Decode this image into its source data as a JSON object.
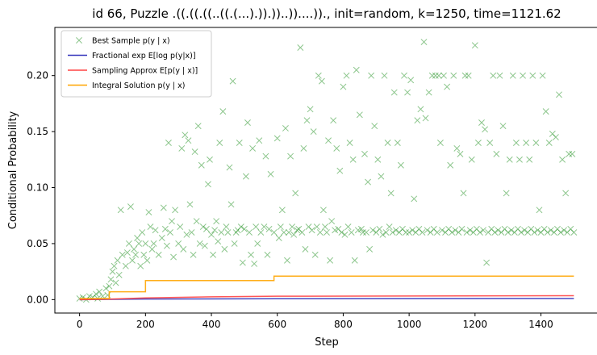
{
  "chart_data": {
    "type": "scatter",
    "title": "id 66, Puzzle .((.((.((..((.(...).)).))..))....))., init=random, k=1250, time=1121.62",
    "xlabel": "Step",
    "ylabel": "Conditional Probability",
    "xlim": [
      -75,
      1575
    ],
    "ylim": [
      -0.012,
      0.243
    ],
    "x_ticks": [
      0,
      200,
      400,
      600,
      800,
      1000,
      1200,
      1400
    ],
    "x_tick_labels": [
      "0",
      "200",
      "400",
      "600",
      "800",
      "1000",
      "1200",
      "1400"
    ],
    "y_ticks": [
      0.0,
      0.05,
      0.1,
      0.15,
      0.2
    ],
    "y_tick_labels": [
      "0.00",
      "0.05",
      "0.10",
      "0.15",
      "0.20"
    ],
    "grid": false,
    "legend_position": "top-left",
    "series": [
      {
        "name": "Best Sample p(y | x)",
        "legend_label": "Best Sample p(y | x)",
        "kind": "scatter",
        "marker": "x",
        "color": "#008000",
        "opacity": 0.45,
        "points": [
          [
            0,
            0.001
          ],
          [
            10,
            0.002
          ],
          [
            20,
            0.0
          ],
          [
            30,
            0.003
          ],
          [
            40,
            0.002
          ],
          [
            50,
            0.005
          ],
          [
            55,
            0.001
          ],
          [
            60,
            0.007
          ],
          [
            70,
            0.003
          ],
          [
            80,
            0.01
          ],
          [
            85,
            0.004
          ],
          [
            90,
            0.012
          ],
          [
            95,
            0.018
          ],
          [
            100,
            0.025
          ],
          [
            105,
            0.03
          ],
          [
            110,
            0.015
          ],
          [
            115,
            0.035
          ],
          [
            120,
            0.022
          ],
          [
            125,
            0.08
          ],
          [
            130,
            0.04
          ],
          [
            140,
            0.03
          ],
          [
            145,
            0.042
          ],
          [
            150,
            0.05
          ],
          [
            155,
            0.083
          ],
          [
            160,
            0.035
          ],
          [
            165,
            0.045
          ],
          [
            170,
            0.04
          ],
          [
            175,
            0.055
          ],
          [
            180,
            0.05
          ],
          [
            185,
            0.03
          ],
          [
            190,
            0.06
          ],
          [
            195,
            0.04
          ],
          [
            200,
            0.05
          ],
          [
            205,
            0.035
          ],
          [
            210,
            0.078
          ],
          [
            215,
            0.065
          ],
          [
            220,
            0.045
          ],
          [
            225,
            0.05
          ],
          [
            230,
            0.062
          ],
          [
            240,
            0.04
          ],
          [
            250,
            0.055
          ],
          [
            255,
            0.082
          ],
          [
            260,
            0.063
          ],
          [
            265,
            0.048
          ],
          [
            270,
            0.14
          ],
          [
            275,
            0.06
          ],
          [
            280,
            0.07
          ],
          [
            285,
            0.038
          ],
          [
            290,
            0.08
          ],
          [
            300,
            0.05
          ],
          [
            305,
            0.065
          ],
          [
            310,
            0.135
          ],
          [
            315,
            0.045
          ],
          [
            320,
            0.147
          ],
          [
            325,
            0.058
          ],
          [
            330,
            0.142
          ],
          [
            335,
            0.085
          ],
          [
            340,
            0.06
          ],
          [
            345,
            0.04
          ],
          [
            350,
            0.132
          ],
          [
            355,
            0.07
          ],
          [
            360,
            0.155
          ],
          [
            365,
            0.05
          ],
          [
            370,
            0.12
          ],
          [
            375,
            0.065
          ],
          [
            380,
            0.048
          ],
          [
            385,
            0.063
          ],
          [
            390,
            0.103
          ],
          [
            395,
            0.125
          ],
          [
            400,
            0.058
          ],
          [
            405,
            0.04
          ],
          [
            410,
            0.062
          ],
          [
            415,
            0.07
          ],
          [
            420,
            0.052
          ],
          [
            425,
            0.14
          ],
          [
            430,
            0.06
          ],
          [
            435,
            0.168
          ],
          [
            440,
            0.045
          ],
          [
            445,
            0.065
          ],
          [
            450,
            0.06
          ],
          [
            455,
            0.118
          ],
          [
            460,
            0.085
          ],
          [
            465,
            0.195
          ],
          [
            470,
            0.05
          ],
          [
            475,
            0.06
          ],
          [
            480,
            0.062
          ],
          [
            485,
            0.14
          ],
          [
            490,
            0.065
          ],
          [
            495,
            0.033
          ],
          [
            500,
            0.063
          ],
          [
            505,
            0.11
          ],
          [
            510,
            0.158
          ],
          [
            515,
            0.06
          ],
          [
            520,
            0.04
          ],
          [
            525,
            0.135
          ],
          [
            530,
            0.032
          ],
          [
            535,
            0.065
          ],
          [
            540,
            0.05
          ],
          [
            545,
            0.142
          ],
          [
            550,
            0.06
          ],
          [
            560,
            0.065
          ],
          [
            565,
            0.128
          ],
          [
            570,
            0.04
          ],
          [
            575,
            0.063
          ],
          [
            580,
            0.112
          ],
          [
            590,
            0.06
          ],
          [
            600,
            0.144
          ],
          [
            605,
            0.055
          ],
          [
            610,
            0.065
          ],
          [
            615,
            0.08
          ],
          [
            620,
            0.06
          ],
          [
            625,
            0.153
          ],
          [
            630,
            0.035
          ],
          [
            635,
            0.06
          ],
          [
            640,
            0.128
          ],
          [
            645,
            0.065
          ],
          [
            650,
            0.058
          ],
          [
            655,
            0.095
          ],
          [
            660,
            0.062
          ],
          [
            665,
            0.063
          ],
          [
            670,
            0.225
          ],
          [
            675,
            0.06
          ],
          [
            680,
            0.135
          ],
          [
            685,
            0.045
          ],
          [
            690,
            0.16
          ],
          [
            695,
            0.065
          ],
          [
            700,
            0.17
          ],
          [
            705,
            0.062
          ],
          [
            710,
            0.15
          ],
          [
            715,
            0.04
          ],
          [
            720,
            0.065
          ],
          [
            725,
            0.2
          ],
          [
            730,
            0.06
          ],
          [
            735,
            0.195
          ],
          [
            740,
            0.08
          ],
          [
            745,
            0.065
          ],
          [
            750,
            0.06
          ],
          [
            755,
            0.142
          ],
          [
            760,
            0.035
          ],
          [
            765,
            0.07
          ],
          [
            770,
            0.16
          ],
          [
            775,
            0.062
          ],
          [
            780,
            0.135
          ],
          [
            785,
            0.063
          ],
          [
            790,
            0.115
          ],
          [
            795,
            0.06
          ],
          [
            800,
            0.19
          ],
          [
            805,
            0.058
          ],
          [
            810,
            0.2
          ],
          [
            815,
            0.065
          ],
          [
            820,
            0.14
          ],
          [
            825,
            0.06
          ],
          [
            830,
            0.125
          ],
          [
            835,
            0.035
          ],
          [
            840,
            0.205
          ],
          [
            845,
            0.062
          ],
          [
            850,
            0.165
          ],
          [
            855,
            0.063
          ],
          [
            860,
            0.06
          ],
          [
            865,
            0.13
          ],
          [
            870,
            0.06
          ],
          [
            875,
            0.105
          ],
          [
            880,
            0.045
          ],
          [
            885,
            0.2
          ],
          [
            890,
            0.062
          ],
          [
            895,
            0.155
          ],
          [
            900,
            0.06
          ],
          [
            905,
            0.125
          ],
          [
            910,
            0.063
          ],
          [
            915,
            0.11
          ],
          [
            920,
            0.058
          ],
          [
            925,
            0.2
          ],
          [
            930,
            0.06
          ],
          [
            935,
            0.14
          ],
          [
            940,
            0.065
          ],
          [
            945,
            0.095
          ],
          [
            950,
            0.06
          ],
          [
            955,
            0.185
          ],
          [
            960,
            0.062
          ],
          [
            965,
            0.14
          ],
          [
            970,
            0.06
          ],
          [
            975,
            0.12
          ],
          [
            980,
            0.063
          ],
          [
            985,
            0.2
          ],
          [
            990,
            0.06
          ],
          [
            995,
            0.185
          ],
          [
            1000,
            0.06
          ],
          [
            1005,
            0.196
          ],
          [
            1010,
            0.062
          ],
          [
            1015,
            0.09
          ],
          [
            1020,
            0.06
          ],
          [
            1025,
            0.16
          ],
          [
            1030,
            0.063
          ],
          [
            1035,
            0.17
          ],
          [
            1040,
            0.06
          ],
          [
            1045,
            0.23
          ],
          [
            1050,
            0.162
          ],
          [
            1055,
            0.062
          ],
          [
            1060,
            0.185
          ],
          [
            1065,
            0.06
          ],
          [
            1070,
            0.2
          ],
          [
            1075,
            0.063
          ],
          [
            1080,
            0.2
          ],
          [
            1085,
            0.06
          ],
          [
            1090,
            0.2
          ],
          [
            1095,
            0.14
          ],
          [
            1100,
            0.062
          ],
          [
            1105,
            0.2
          ],
          [
            1110,
            0.06
          ],
          [
            1115,
            0.19
          ],
          [
            1120,
            0.063
          ],
          [
            1125,
            0.12
          ],
          [
            1130,
            0.06
          ],
          [
            1135,
            0.2
          ],
          [
            1140,
            0.062
          ],
          [
            1145,
            0.135
          ],
          [
            1150,
            0.06
          ],
          [
            1155,
            0.13
          ],
          [
            1160,
            0.063
          ],
          [
            1165,
            0.095
          ],
          [
            1170,
            0.2
          ],
          [
            1175,
            0.06
          ],
          [
            1180,
            0.2
          ],
          [
            1185,
            0.062
          ],
          [
            1190,
            0.125
          ],
          [
            1195,
            0.06
          ],
          [
            1200,
            0.227
          ],
          [
            1205,
            0.063
          ],
          [
            1210,
            0.14
          ],
          [
            1215,
            0.06
          ],
          [
            1220,
            0.158
          ],
          [
            1225,
            0.062
          ],
          [
            1230,
            0.152
          ],
          [
            1235,
            0.033
          ],
          [
            1240,
            0.06
          ],
          [
            1245,
            0.14
          ],
          [
            1250,
            0.063
          ],
          [
            1255,
            0.2
          ],
          [
            1260,
            0.06
          ],
          [
            1265,
            0.13
          ],
          [
            1270,
            0.062
          ],
          [
            1275,
            0.2
          ],
          [
            1280,
            0.06
          ],
          [
            1285,
            0.155
          ],
          [
            1290,
            0.063
          ],
          [
            1295,
            0.095
          ],
          [
            1300,
            0.06
          ],
          [
            1305,
            0.125
          ],
          [
            1310,
            0.062
          ],
          [
            1315,
            0.2
          ],
          [
            1320,
            0.06
          ],
          [
            1325,
            0.14
          ],
          [
            1330,
            0.063
          ],
          [
            1335,
            0.125
          ],
          [
            1340,
            0.06
          ],
          [
            1345,
            0.2
          ],
          [
            1350,
            0.062
          ],
          [
            1355,
            0.14
          ],
          [
            1360,
            0.06
          ],
          [
            1365,
            0.125
          ],
          [
            1370,
            0.063
          ],
          [
            1375,
            0.2
          ],
          [
            1380,
            0.06
          ],
          [
            1385,
            0.14
          ],
          [
            1390,
            0.062
          ],
          [
            1395,
            0.08
          ],
          [
            1400,
            0.06
          ],
          [
            1405,
            0.2
          ],
          [
            1410,
            0.063
          ],
          [
            1415,
            0.168
          ],
          [
            1420,
            0.06
          ],
          [
            1425,
            0.14
          ],
          [
            1430,
            0.062
          ],
          [
            1435,
            0.148
          ],
          [
            1440,
            0.06
          ],
          [
            1445,
            0.145
          ],
          [
            1450,
            0.063
          ],
          [
            1455,
            0.183
          ],
          [
            1460,
            0.06
          ],
          [
            1465,
            0.125
          ],
          [
            1470,
            0.062
          ],
          [
            1475,
            0.095
          ],
          [
            1480,
            0.06
          ],
          [
            1485,
            0.13
          ],
          [
            1490,
            0.063
          ],
          [
            1495,
            0.13
          ],
          [
            1500,
            0.06
          ]
        ]
      },
      {
        "name": "Fractional exp E[log p(y|x)]",
        "legend_label": "Fractional exp E[log p(y|x)]",
        "kind": "line",
        "color": "#3333bb",
        "points": [
          [
            0,
            0.0
          ],
          [
            200,
            0.0005
          ],
          [
            600,
            0.0008
          ],
          [
            1500,
            0.001
          ]
        ]
      },
      {
        "name": "Sampling Approx E[p(y | x)]",
        "legend_label": "Sampling Approx E[p(y | x)]",
        "kind": "line",
        "color": "#ff4444",
        "points": [
          [
            0,
            0.0
          ],
          [
            100,
            0.0005
          ],
          [
            200,
            0.0015
          ],
          [
            400,
            0.0025
          ],
          [
            600,
            0.003
          ],
          [
            1000,
            0.0032
          ],
          [
            1500,
            0.0035
          ]
        ]
      },
      {
        "name": "Integral Solution p(y | x)",
        "legend_label": "Integral Solution p(y | x)",
        "kind": "step",
        "color": "#ffa500",
        "points": [
          [
            0,
            0.001
          ],
          [
            90,
            0.001
          ],
          [
            90,
            0.007
          ],
          [
            200,
            0.007
          ],
          [
            200,
            0.017
          ],
          [
            590,
            0.017
          ],
          [
            590,
            0.021
          ],
          [
            1500,
            0.021
          ]
        ]
      }
    ]
  }
}
